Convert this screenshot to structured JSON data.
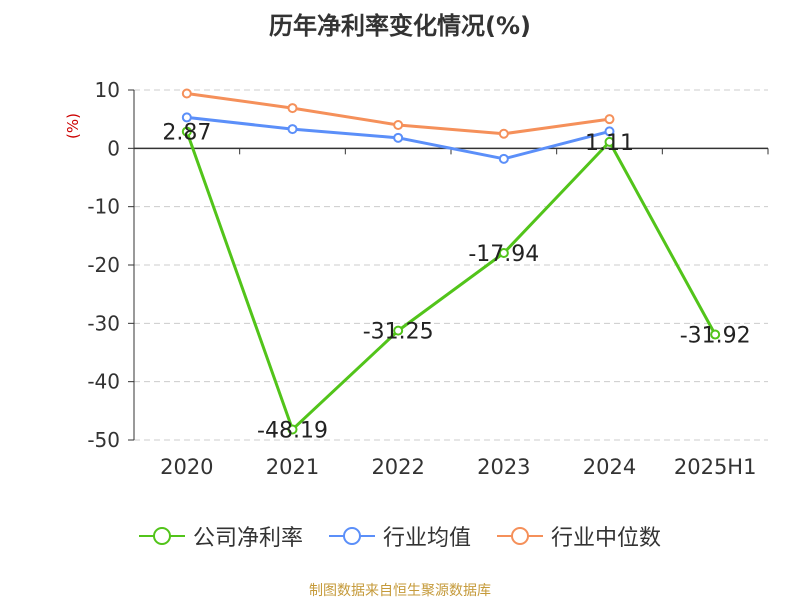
{
  "title": "历年净利率变化情况(%)",
  "footer": "制图数据来自恒生聚源数据库",
  "chart_data": {
    "type": "line",
    "categories": [
      "2020",
      "2021",
      "2022",
      "2023",
      "2024",
      "2025H1"
    ],
    "ylabel": "(%)",
    "ylim": [
      -50,
      10
    ],
    "yticks": [
      10,
      0,
      -10,
      -20,
      -30,
      -40,
      -50
    ],
    "grid": true,
    "legend_position": "bottom",
    "series": [
      {
        "name": "公司净利率",
        "color": "#52c41a",
        "values": [
          2.87,
          -48.19,
          -31.25,
          -17.94,
          1.11,
          -31.92
        ],
        "labels": [
          "2.87",
          "-48.19",
          "-31.25",
          "-17.94",
          "1.11",
          "-31.92"
        ]
      },
      {
        "name": "行业均值",
        "color": "#5b8ff9",
        "values": [
          5.3,
          3.3,
          1.8,
          -1.8,
          2.9,
          null
        ]
      },
      {
        "name": "行业中位数",
        "color": "#f5905a",
        "values": [
          9.4,
          6.9,
          4.0,
          2.5,
          5.0,
          null
        ]
      }
    ]
  }
}
